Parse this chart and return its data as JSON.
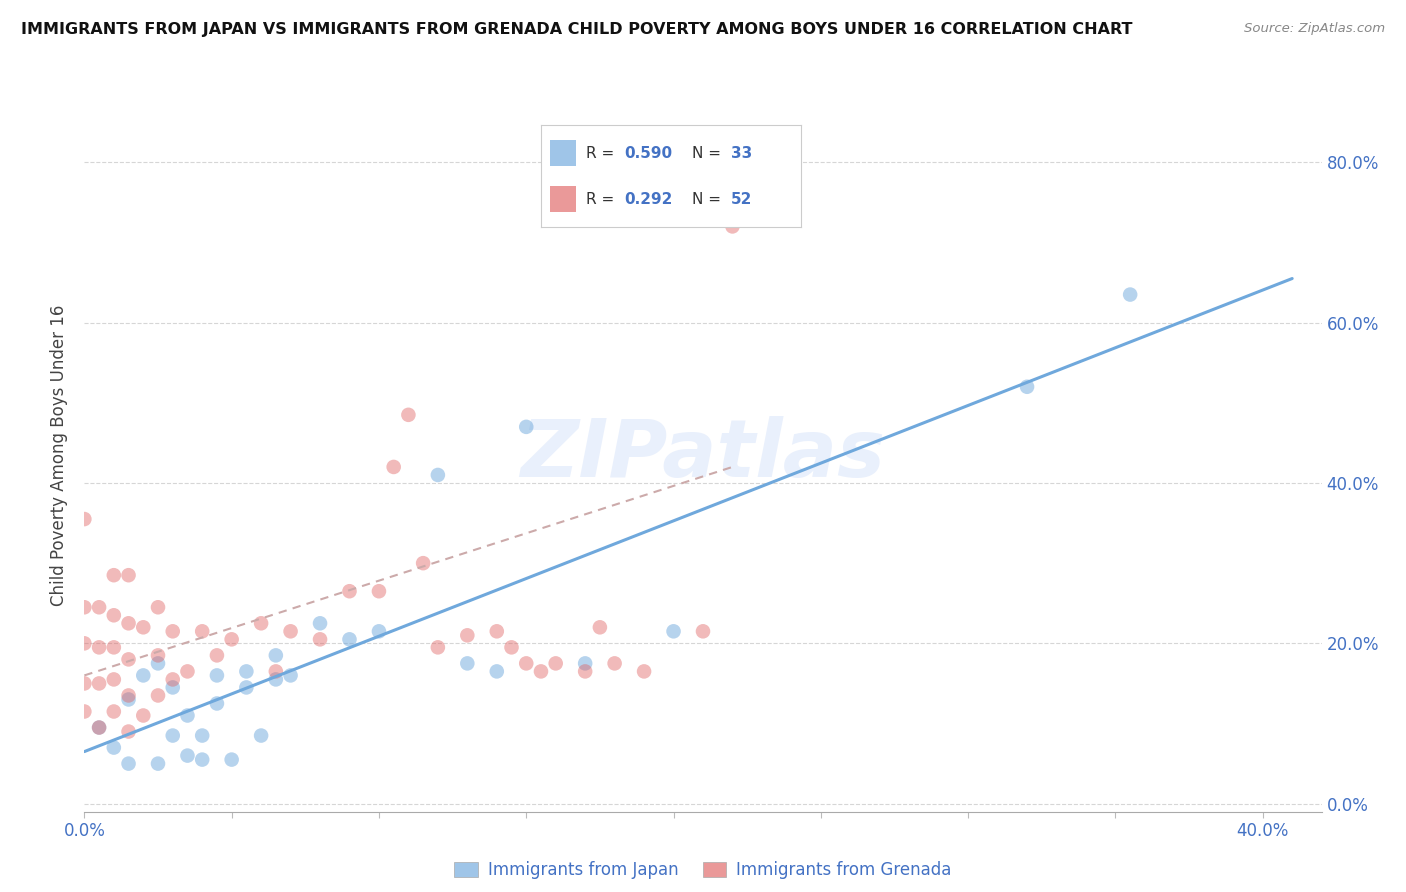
{
  "title": "IMMIGRANTS FROM JAPAN VS IMMIGRANTS FROM GRENADA CHILD POVERTY AMONG BOYS UNDER 16 CORRELATION CHART",
  "source": "Source: ZipAtlas.com",
  "ylabel": "Child Poverty Among Boys Under 16",
  "xlim": [
    0.0,
    0.42
  ],
  "ylim": [
    -0.01,
    0.88
  ],
  "yticks": [
    0.0,
    0.2,
    0.4,
    0.6,
    0.8
  ],
  "ytick_labels": [
    "0.0%",
    "20.0%",
    "40.0%",
    "60.0%",
    "80.0%"
  ],
  "xticks": [
    0.0,
    0.05,
    0.1,
    0.15,
    0.2,
    0.25,
    0.3,
    0.35,
    0.4
  ],
  "xtick_labels": [
    "0.0%",
    "",
    "",
    "",
    "",
    "",
    "",
    "",
    "40.0%"
  ],
  "japan_color": "#6fa8dc",
  "grenada_color": "#e06666",
  "japan_R": 0.59,
  "japan_N": 33,
  "grenada_R": 0.292,
  "grenada_N": 52,
  "watermark": "ZIPatlas",
  "japan_scatter_x": [
    0.005,
    0.01,
    0.015,
    0.015,
    0.02,
    0.025,
    0.025,
    0.03,
    0.03,
    0.035,
    0.035,
    0.04,
    0.04,
    0.045,
    0.045,
    0.05,
    0.055,
    0.055,
    0.06,
    0.065,
    0.065,
    0.07,
    0.08,
    0.09,
    0.1,
    0.12,
    0.13,
    0.14,
    0.15,
    0.17,
    0.2,
    0.32,
    0.355
  ],
  "japan_scatter_y": [
    0.095,
    0.07,
    0.05,
    0.13,
    0.16,
    0.05,
    0.175,
    0.085,
    0.145,
    0.06,
    0.11,
    0.055,
    0.085,
    0.125,
    0.16,
    0.055,
    0.145,
    0.165,
    0.085,
    0.155,
    0.185,
    0.16,
    0.225,
    0.205,
    0.215,
    0.41,
    0.175,
    0.165,
    0.47,
    0.175,
    0.215,
    0.52,
    0.635
  ],
  "grenada_scatter_x": [
    0.0,
    0.0,
    0.0,
    0.0,
    0.0,
    0.005,
    0.005,
    0.005,
    0.005,
    0.01,
    0.01,
    0.01,
    0.01,
    0.01,
    0.015,
    0.015,
    0.015,
    0.015,
    0.015,
    0.02,
    0.02,
    0.025,
    0.025,
    0.025,
    0.03,
    0.03,
    0.035,
    0.04,
    0.045,
    0.05,
    0.06,
    0.065,
    0.07,
    0.08,
    0.09,
    0.1,
    0.105,
    0.11,
    0.115,
    0.12,
    0.13,
    0.14,
    0.145,
    0.15,
    0.155,
    0.16,
    0.17,
    0.175,
    0.18,
    0.19,
    0.21,
    0.22
  ],
  "grenada_scatter_y": [
    0.115,
    0.15,
    0.2,
    0.245,
    0.355,
    0.095,
    0.15,
    0.195,
    0.245,
    0.115,
    0.155,
    0.195,
    0.235,
    0.285,
    0.09,
    0.135,
    0.18,
    0.225,
    0.285,
    0.11,
    0.22,
    0.135,
    0.185,
    0.245,
    0.155,
    0.215,
    0.165,
    0.215,
    0.185,
    0.205,
    0.225,
    0.165,
    0.215,
    0.205,
    0.265,
    0.265,
    0.42,
    0.485,
    0.3,
    0.195,
    0.21,
    0.215,
    0.195,
    0.175,
    0.165,
    0.175,
    0.165,
    0.22,
    0.175,
    0.165,
    0.215,
    0.72
  ],
  "japan_trend_x": [
    0.0,
    0.41
  ],
  "japan_trend_y": [
    0.065,
    0.655
  ],
  "grenada_trend_x": [
    0.0,
    0.22
  ],
  "grenada_trend_y": [
    0.16,
    0.42
  ],
  "axis_color": "#4472c4",
  "background_color": "#ffffff",
  "grid_color": "#cccccc",
  "legend_japan_color": "#9fc5e8",
  "legend_grenada_color": "#ea9999"
}
